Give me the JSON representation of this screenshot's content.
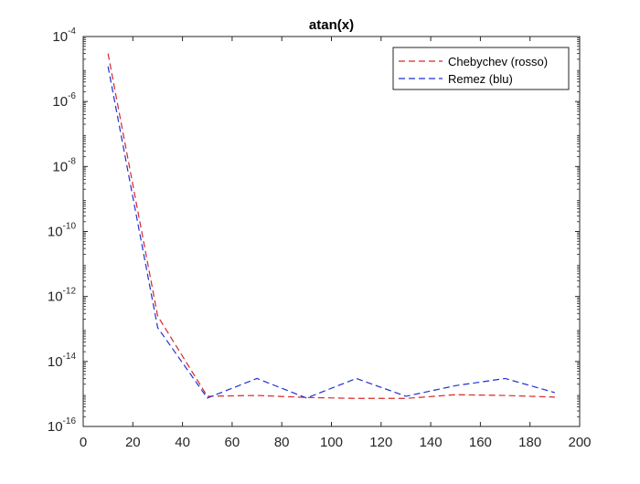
{
  "chart_data": {
    "type": "line",
    "title": "atan(x)",
    "xlabel": "",
    "ylabel": "",
    "xlim": [
      0,
      200
    ],
    "ylim": [
      1e-16,
      0.0001
    ],
    "yscale": "log",
    "x_ticks": [
      0,
      20,
      40,
      60,
      80,
      100,
      120,
      140,
      160,
      180,
      200
    ],
    "y_ticks": [
      {
        "value": 1e-16,
        "base": "10",
        "exp": "-16"
      },
      {
        "value": 1e-14,
        "base": "10",
        "exp": "-14"
      },
      {
        "value": 1e-12,
        "base": "10",
        "exp": "-12"
      },
      {
        "value": 1e-10,
        "base": "10",
        "exp": "-10"
      },
      {
        "value": 1e-08,
        "base": "10",
        "exp": "-8"
      },
      {
        "value": 1e-06,
        "base": "10",
        "exp": "-6"
      },
      {
        "value": 0.0001,
        "base": "10",
        "exp": "-4"
      }
    ],
    "grid": false,
    "legend_position": "top-right",
    "x": [
      10,
      30,
      50,
      70,
      90,
      110,
      130,
      150,
      170,
      190
    ],
    "series": [
      {
        "name": "Chebychev (rosso)",
        "color": "#d62728",
        "line_style": "dashed",
        "values": [
          3e-05,
          2.5e-13,
          8.5e-16,
          9e-16,
          7.8e-16,
          7.3e-16,
          7.3e-16,
          9.5e-16,
          9e-16,
          8e-16
        ]
      },
      {
        "name": "Remez (blu)",
        "color": "#1f2fd6",
        "line_style": "dashed",
        "values": [
          1.2e-05,
          1.1e-13,
          7.5e-16,
          3e-15,
          7.5e-16,
          3e-15,
          8.5e-16,
          1.8e-15,
          3e-15,
          1.1e-15
        ]
      }
    ]
  }
}
